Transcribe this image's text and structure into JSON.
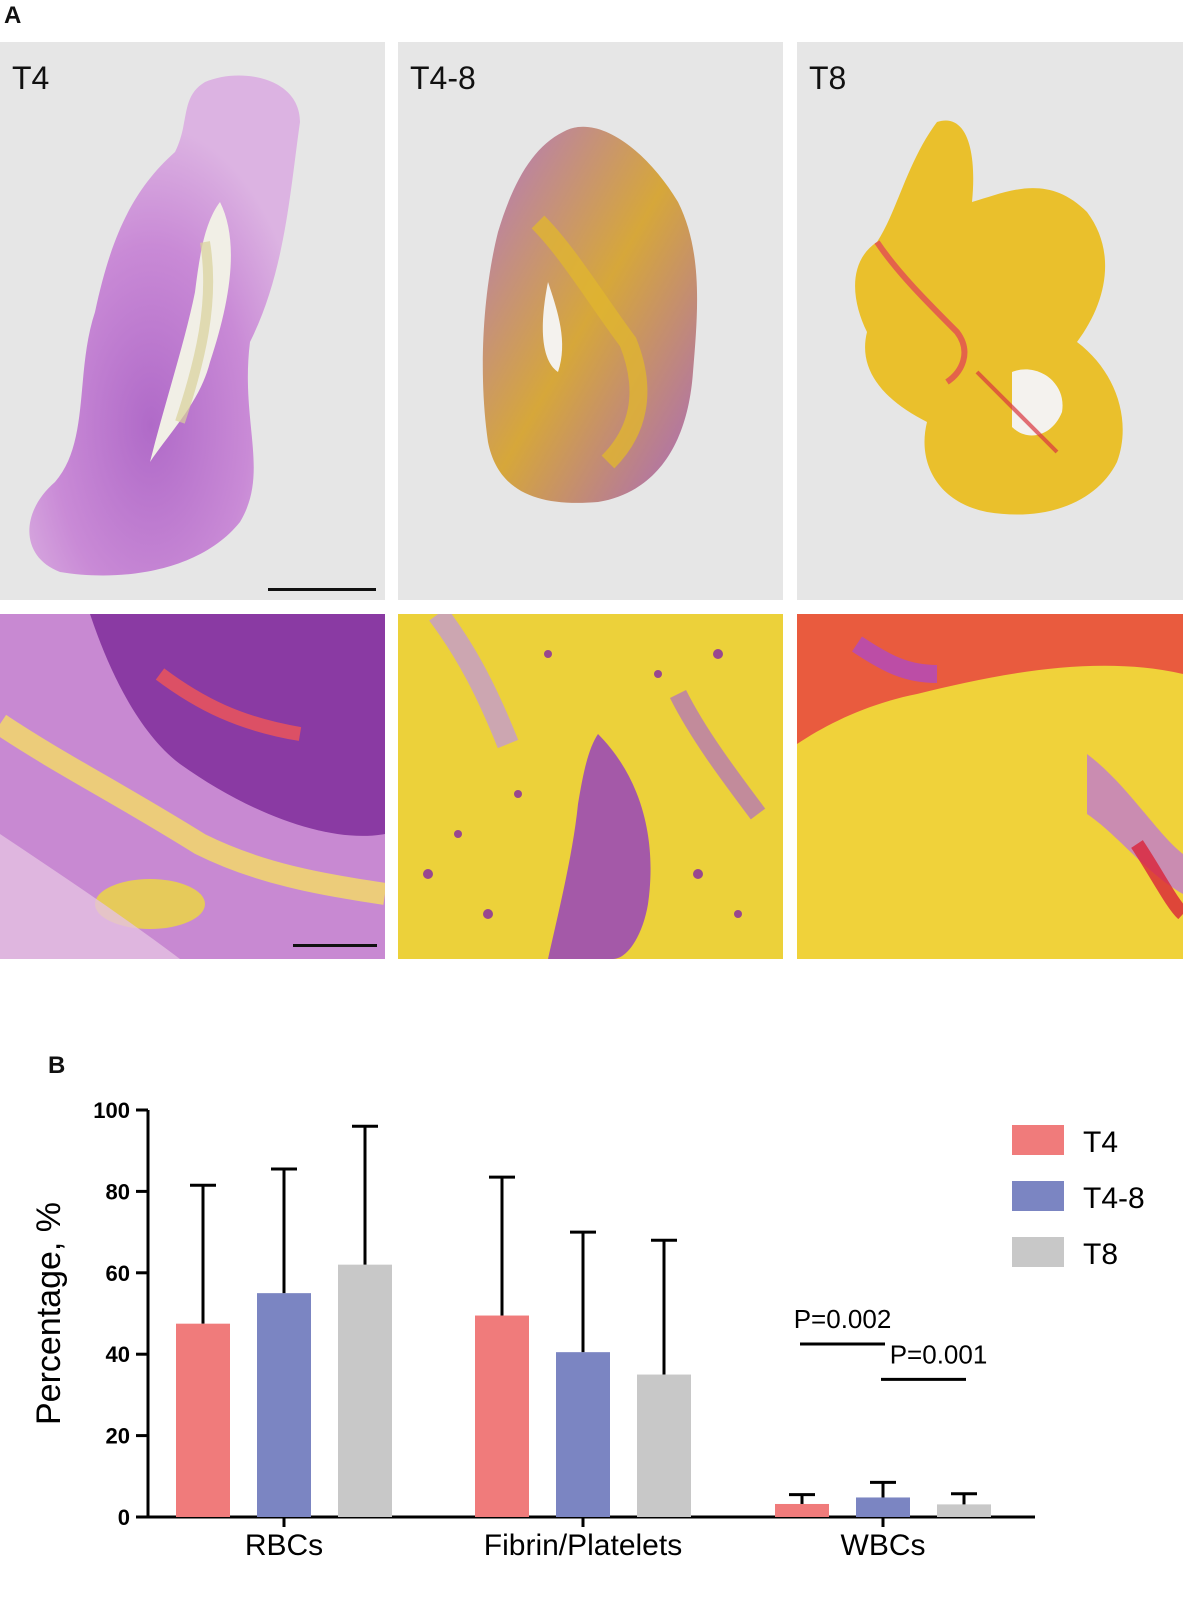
{
  "panel_a": {
    "letter": "A",
    "top_tiles": [
      {
        "label": "T4"
      },
      {
        "label": "T4-8"
      },
      {
        "label": "T8"
      }
    ]
  },
  "panel_b": {
    "letter": "B"
  },
  "colors": {
    "T4": "#f07b7b",
    "T4-8": "#7b85c2",
    "T8": "#c8c8c8"
  },
  "chart_data": {
    "type": "bar",
    "categories": [
      "RBCs",
      "Fibrin/Platelets",
      "WBCs"
    ],
    "series": [
      {
        "name": "T4",
        "values": [
          47.5,
          49.5,
          3.2
        ],
        "errors": [
          34,
          34,
          2.3
        ]
      },
      {
        "name": "T4-8",
        "values": [
          55,
          40.5,
          4.8
        ],
        "errors": [
          30.5,
          29.5,
          3.7
        ]
      },
      {
        "name": "T8",
        "values": [
          62,
          35,
          3.1
        ],
        "errors": [
          34,
          33,
          2.6
        ]
      }
    ],
    "ylabel": "Percentage, %",
    "ylim": [
      0,
      100
    ],
    "yticks": [
      "0",
      "20",
      "40",
      "60",
      "80",
      "100"
    ],
    "legend_position": "top-right",
    "annotations": [
      {
        "text": "P=0.002",
        "category": "WBCs",
        "from_series": "T4",
        "to_series": "T4-8"
      },
      {
        "text": "P=0.001",
        "category": "WBCs",
        "from_series": "T4-8",
        "to_series": "T8"
      }
    ]
  }
}
